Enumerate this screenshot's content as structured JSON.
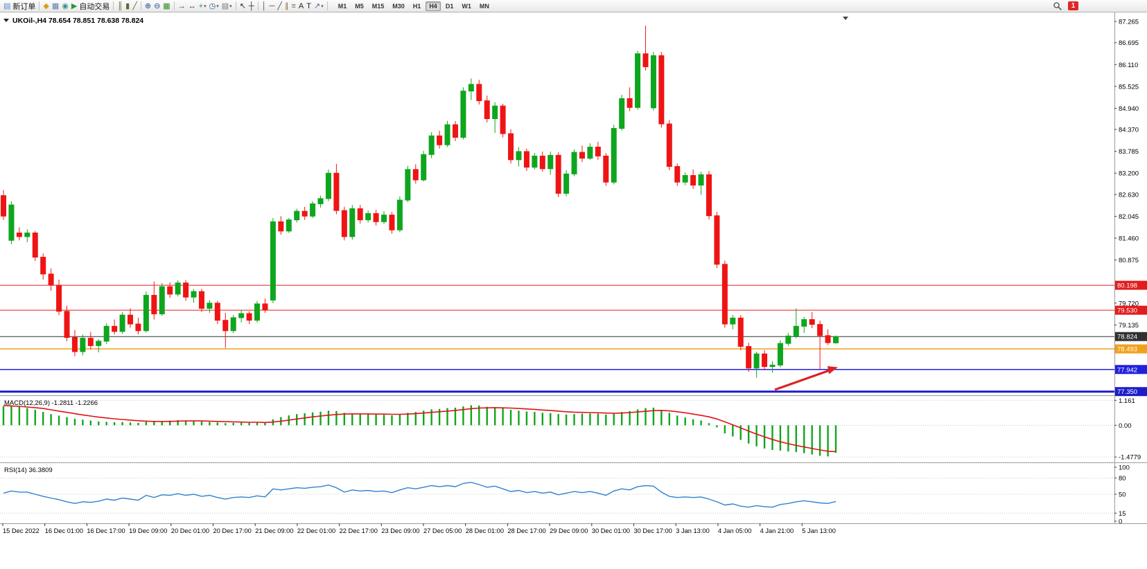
{
  "toolbar": {
    "items": [
      {
        "type": "button",
        "name": "new-order-button",
        "glyph": "▤",
        "color": "#5a8ac6",
        "label": "新订单"
      },
      {
        "type": "sep"
      },
      {
        "type": "icon",
        "name": "profiles-icon",
        "glyph": "◆",
        "color": "#d4a017"
      },
      {
        "type": "icon",
        "name": "new-chart-icon",
        "glyph": "▦",
        "color": "#5b7fae"
      },
      {
        "type": "icon",
        "name": "data-window-icon",
        "glyph": "◉",
        "color": "#3f8f8f"
      },
      {
        "type": "button",
        "name": "autotrading-button",
        "glyph": "▶",
        "color": "#1f9d3a",
        "label": "自动交易"
      },
      {
        "type": "sep"
      },
      {
        "type": "icon",
        "name": "bar-chart-icon",
        "glyph": "║",
        "color": "#556b2f"
      },
      {
        "type": "icon",
        "name": "candlestick-chart-icon",
        "glyph": "▮",
        "color": "#556b2f"
      },
      {
        "type": "icon",
        "name": "line-chart-icon",
        "glyph": "╱",
        "color": "#556b2f"
      },
      {
        "type": "sep"
      },
      {
        "type": "icon",
        "name": "zoom-in-icon",
        "glyph": "⊕",
        "color": "#23538a"
      },
      {
        "type": "icon",
        "name": "zoom-out-icon",
        "glyph": "⊖",
        "color": "#23538a"
      },
      {
        "type": "icon",
        "name": "tile-windows-icon",
        "glyph": "▦",
        "color": "#2e8b2e"
      },
      {
        "type": "sep"
      },
      {
        "type": "icon",
        "name": "auto-scroll-icon",
        "glyph": "→",
        "color": "#444444"
      },
      {
        "type": "icon",
        "name": "chart-shift-icon",
        "glyph": "↔",
        "color": "#444444"
      },
      {
        "type": "icon-drop",
        "name": "indicators-menu",
        "glyph": "+",
        "color": "#1f9d3a"
      },
      {
        "type": "icon-drop",
        "name": "periods-menu",
        "glyph": "◷",
        "color": "#23538a"
      },
      {
        "type": "icon-drop",
        "name": "templates-menu",
        "glyph": "▤",
        "color": "#777777"
      },
      {
        "type": "sep"
      },
      {
        "type": "icon",
        "name": "cursor-icon",
        "glyph": "↖",
        "color": "#222222"
      },
      {
        "type": "icon",
        "name": "crosshair-icon",
        "glyph": "┼",
        "color": "#222222"
      },
      {
        "type": "sep"
      },
      {
        "type": "icon",
        "name": "vertical-line-icon",
        "glyph": "│",
        "color": "#444444"
      },
      {
        "type": "icon",
        "name": "horizontal-line-icon",
        "glyph": "─",
        "color": "#444444"
      },
      {
        "type": "icon",
        "name": "trendline-icon",
        "glyph": "╱",
        "color": "#444444"
      },
      {
        "type": "icon",
        "name": "channel-icon",
        "glyph": "∥",
        "color": "#8a6d3b"
      },
      {
        "type": "icon",
        "name": "fibonacci-icon",
        "glyph": "≡",
        "color": "#8a6d3b"
      },
      {
        "type": "icon",
        "name": "text-icon",
        "glyph": "A",
        "color": "#222222"
      },
      {
        "type": "icon",
        "name": "text-label-icon",
        "glyph": "T",
        "color": "#222222"
      },
      {
        "type": "icon-drop",
        "name": "arrows-menu",
        "glyph": "↗",
        "color": "#7a4ca0"
      },
      {
        "type": "sep"
      }
    ],
    "timeframes": [
      {
        "label": "M1",
        "active": false
      },
      {
        "label": "M5",
        "active": false
      },
      {
        "label": "M15",
        "active": false
      },
      {
        "label": "M30",
        "active": false
      },
      {
        "label": "H1",
        "active": false
      },
      {
        "label": "H4",
        "active": true
      },
      {
        "label": "D1",
        "active": false
      },
      {
        "label": "W1",
        "active": false
      },
      {
        "label": "MN",
        "active": false
      }
    ],
    "notification_count": "1"
  },
  "chart_data": {
    "type": "candlestick",
    "symbol_period": "UKOil-,H4",
    "ohlc_text": "78.654 78.851 78.638 78.824",
    "colors": {
      "up": "#0ea61e",
      "down": "#ef1414",
      "macd_hist": "#0ea61e",
      "macd_signal": "#e01212",
      "rsi_line": "#2f80d0",
      "arrow": "#dd2222"
    },
    "price_axis": {
      "values": [
        87.265,
        86.695,
        86.11,
        85.525,
        84.94,
        84.37,
        83.785,
        83.2,
        82.63,
        82.045,
        81.46,
        80.875,
        79.72,
        79.135
      ]
    },
    "h_lines": [
      {
        "price": 80.198,
        "color": "#e21d1d",
        "label": "80.198",
        "width": 1
      },
      {
        "price": 79.53,
        "color": "#e21d1d",
        "label": "79.530",
        "width": 1
      },
      {
        "price": 78.824,
        "color": "#303030",
        "label": "78.824",
        "width": 1
      },
      {
        "price": 78.493,
        "color": "#f0a11c",
        "label": "78.493",
        "width": 1.5
      },
      {
        "price": 77.942,
        "color": "#2020dd",
        "label": "77.942",
        "width": 1.5
      },
      {
        "price": 77.35,
        "color": "#1c1cc8",
        "label": "77.350",
        "width": 3
      }
    ],
    "time_labels": [
      "15 Dec 2022",
      "16 Dec 01:00",
      "16 Dec 17:00",
      "19 Dec 09:00",
      "20 Dec 01:00",
      "20 Dec 17:00",
      "21 Dec 09:00",
      "22 Dec 01:00",
      "22 Dec 17:00",
      "23 Dec 09:00",
      "27 Dec 05:00",
      "28 Dec 01:00",
      "28 Dec 17:00",
      "29 Dec 09:00",
      "30 Dec 01:00",
      "30 Dec 17:00",
      "3 Jan 13:00",
      "4 Jan 05:00",
      "4 Jan 21:00",
      "5 Jan 13:00"
    ],
    "candles": [
      [
        82.6,
        82.75,
        81.95,
        82.05
      ],
      [
        81.4,
        82.45,
        81.3,
        82.35
      ],
      [
        81.6,
        81.75,
        81.4,
        81.5
      ],
      [
        81.5,
        81.7,
        81.35,
        81.6
      ],
      [
        81.6,
        81.65,
        80.85,
        80.95
      ],
      [
        80.95,
        81.05,
        80.35,
        80.5
      ],
      [
        80.5,
        80.65,
        80.05,
        80.2
      ],
      [
        80.2,
        80.35,
        79.4,
        79.5
      ],
      [
        79.5,
        79.65,
        78.7,
        78.8
      ],
      [
        78.8,
        79.0,
        78.3,
        78.42
      ],
      [
        78.42,
        78.88,
        78.32,
        78.78
      ],
      [
        78.78,
        78.95,
        78.48,
        78.58
      ],
      [
        78.58,
        78.76,
        78.4,
        78.7
      ],
      [
        78.7,
        79.18,
        78.63,
        79.1
      ],
      [
        79.1,
        79.28,
        78.88,
        78.96
      ],
      [
        78.96,
        79.48,
        78.9,
        79.4
      ],
      [
        79.4,
        79.58,
        79.06,
        79.16
      ],
      [
        79.16,
        79.33,
        78.88,
        78.98
      ],
      [
        78.98,
        80.03,
        78.93,
        79.93
      ],
      [
        79.93,
        80.3,
        79.28,
        79.43
      ],
      [
        79.43,
        80.26,
        79.38,
        80.16
      ],
      [
        80.16,
        80.28,
        79.86,
        79.96
      ],
      [
        79.96,
        80.33,
        79.9,
        80.26
      ],
      [
        80.26,
        80.34,
        79.78,
        79.88
      ],
      [
        79.88,
        80.1,
        79.73,
        80.03
      ],
      [
        80.03,
        80.1,
        79.48,
        79.58
      ],
      [
        79.58,
        79.8,
        79.46,
        79.72
      ],
      [
        79.72,
        79.78,
        79.16,
        79.26
      ],
      [
        79.26,
        79.46,
        78.52,
        78.98
      ],
      [
        78.98,
        79.4,
        78.92,
        79.33
      ],
      [
        79.33,
        79.53,
        79.2,
        79.44
      ],
      [
        79.44,
        79.5,
        79.16,
        79.26
      ],
      [
        79.26,
        79.78,
        79.2,
        79.7
      ],
      [
        79.7,
        79.84,
        79.46,
        79.54
      ],
      [
        79.8,
        82.0,
        79.72,
        81.9
      ],
      [
        81.9,
        82.05,
        81.55,
        81.65
      ],
      [
        81.65,
        82.0,
        81.6,
        81.95
      ],
      [
        81.95,
        82.25,
        81.88,
        82.18
      ],
      [
        82.18,
        82.3,
        81.95,
        82.05
      ],
      [
        82.05,
        82.45,
        82.0,
        82.38
      ],
      [
        82.38,
        82.6,
        82.28,
        82.52
      ],
      [
        82.52,
        83.3,
        82.45,
        83.2
      ],
      [
        83.2,
        83.45,
        82.1,
        82.2
      ],
      [
        82.2,
        82.3,
        81.4,
        81.5
      ],
      [
        81.5,
        82.35,
        81.42,
        82.25
      ],
      [
        82.25,
        82.35,
        81.85,
        81.95
      ],
      [
        81.95,
        82.2,
        81.88,
        82.12
      ],
      [
        82.12,
        82.22,
        81.8,
        81.9
      ],
      [
        81.9,
        82.18,
        81.84,
        82.08
      ],
      [
        82.08,
        82.16,
        81.58,
        81.68
      ],
      [
        81.68,
        82.58,
        81.62,
        82.48
      ],
      [
        82.48,
        83.4,
        82.42,
        83.3
      ],
      [
        83.3,
        83.44,
        82.92,
        83.02
      ],
      [
        83.02,
        83.8,
        82.98,
        83.7
      ],
      [
        83.7,
        84.3,
        83.6,
        84.2
      ],
      [
        84.2,
        84.34,
        83.86,
        83.96
      ],
      [
        83.96,
        84.6,
        83.9,
        84.5
      ],
      [
        84.5,
        84.6,
        84.06,
        84.16
      ],
      [
        84.16,
        85.5,
        84.1,
        85.4
      ],
      [
        85.4,
        85.74,
        85.16,
        85.58
      ],
      [
        85.58,
        85.7,
        85.04,
        85.14
      ],
      [
        85.14,
        85.28,
        84.56,
        84.66
      ],
      [
        84.66,
        85.1,
        84.28,
        85.0
      ],
      [
        85.0,
        85.06,
        84.16,
        84.26
      ],
      [
        84.26,
        84.38,
        83.46,
        83.56
      ],
      [
        83.56,
        83.9,
        83.38,
        83.78
      ],
      [
        83.78,
        83.86,
        83.26,
        83.36
      ],
      [
        83.36,
        83.74,
        83.3,
        83.66
      ],
      [
        83.66,
        83.78,
        83.24,
        83.32
      ],
      [
        83.32,
        83.78,
        83.16,
        83.68
      ],
      [
        83.68,
        83.76,
        82.56,
        82.66
      ],
      [
        82.66,
        83.28,
        82.58,
        83.18
      ],
      [
        83.18,
        83.84,
        83.12,
        83.76
      ],
      [
        83.76,
        83.94,
        83.5,
        83.6
      ],
      [
        83.6,
        84.0,
        83.56,
        83.9
      ],
      [
        83.9,
        84.04,
        83.56,
        83.66
      ],
      [
        83.66,
        83.74,
        82.86,
        82.96
      ],
      [
        82.96,
        84.5,
        82.9,
        84.4
      ],
      [
        84.4,
        85.3,
        84.34,
        85.2
      ],
      [
        85.2,
        85.5,
        84.86,
        84.96
      ],
      [
        84.96,
        86.48,
        84.9,
        86.4
      ],
      [
        86.4,
        87.15,
        85.95,
        86.05
      ],
      [
        84.95,
        86.45,
        84.88,
        86.35
      ],
      [
        86.35,
        86.45,
        84.42,
        84.52
      ],
      [
        84.52,
        84.62,
        83.28,
        83.38
      ],
      [
        83.38,
        83.46,
        82.86,
        82.96
      ],
      [
        82.96,
        83.22,
        82.88,
        83.14
      ],
      [
        83.14,
        83.3,
        82.78,
        82.88
      ],
      [
        82.88,
        83.24,
        82.62,
        83.16
      ],
      [
        83.16,
        83.26,
        81.96,
        82.06
      ],
      [
        82.06,
        82.16,
        80.66,
        80.76
      ],
      [
        80.76,
        80.86,
        79.06,
        79.16
      ],
      [
        79.16,
        79.4,
        79.02,
        79.32
      ],
      [
        79.32,
        79.4,
        78.46,
        78.56
      ],
      [
        78.56,
        78.66,
        77.88,
        77.98
      ],
      [
        77.98,
        78.42,
        77.72,
        78.36
      ],
      [
        78.36,
        78.46,
        77.92,
        78.02
      ],
      [
        78.02,
        78.16,
        77.86,
        78.06
      ],
      [
        78.06,
        78.72,
        78.0,
        78.64
      ],
      [
        78.64,
        78.92,
        78.58,
        78.84
      ],
      [
        78.84,
        79.58,
        78.78,
        79.1
      ],
      [
        79.1,
        79.35,
        78.92,
        79.28
      ],
      [
        79.28,
        79.48,
        79.05,
        79.15
      ],
      [
        79.15,
        79.25,
        77.95,
        78.85
      ],
      [
        78.85,
        79.02,
        78.6,
        78.66
      ],
      [
        78.654,
        78.851,
        78.638,
        78.824
      ]
    ],
    "macd": {
      "label": "MACD(12,26,9)",
      "values_text": "-1.2811 -1.2266",
      "axis_labels": [
        "1.161",
        "0.00",
        "-1.4779"
      ],
      "axis_values": [
        1.161,
        0,
        -1.4779
      ],
      "range": [
        -1.6,
        1.3
      ],
      "histogram": [
        0.88,
        0.92,
        0.86,
        0.8,
        0.72,
        0.62,
        0.52,
        0.45,
        0.38,
        0.3,
        0.26,
        0.22,
        0.18,
        0.16,
        0.14,
        0.15,
        0.13,
        0.11,
        0.16,
        0.18,
        0.2,
        0.22,
        0.24,
        0.22,
        0.2,
        0.17,
        0.15,
        0.13,
        0.1,
        0.11,
        0.12,
        0.11,
        0.13,
        0.12,
        0.28,
        0.38,
        0.46,
        0.52,
        0.56,
        0.6,
        0.63,
        0.68,
        0.66,
        0.58,
        0.55,
        0.53,
        0.52,
        0.5,
        0.49,
        0.46,
        0.5,
        0.58,
        0.62,
        0.68,
        0.74,
        0.76,
        0.8,
        0.82,
        0.88,
        0.93,
        0.92,
        0.86,
        0.84,
        0.8,
        0.72,
        0.68,
        0.64,
        0.62,
        0.58,
        0.57,
        0.52,
        0.5,
        0.52,
        0.54,
        0.55,
        0.54,
        0.5,
        0.56,
        0.62,
        0.66,
        0.74,
        0.8,
        0.82,
        0.72,
        0.58,
        0.45,
        0.36,
        0.28,
        0.22,
        0.1,
        -0.1,
        -0.38,
        -0.52,
        -0.68,
        -0.85,
        -0.98,
        -1.08,
        -1.15,
        -1.18,
        -1.22,
        -1.25,
        -1.3,
        -1.36,
        -1.42,
        -1.45,
        -1.2811
      ],
      "signal": [
        0.92,
        0.9,
        0.88,
        0.85,
        0.82,
        0.78,
        0.72,
        0.66,
        0.6,
        0.54,
        0.48,
        0.43,
        0.38,
        0.34,
        0.3,
        0.27,
        0.24,
        0.21,
        0.19,
        0.18,
        0.18,
        0.18,
        0.19,
        0.2,
        0.2,
        0.2,
        0.19,
        0.18,
        0.17,
        0.16,
        0.15,
        0.14,
        0.14,
        0.13,
        0.15,
        0.19,
        0.24,
        0.29,
        0.34,
        0.39,
        0.43,
        0.47,
        0.5,
        0.52,
        0.53,
        0.53,
        0.53,
        0.52,
        0.52,
        0.51,
        0.51,
        0.52,
        0.54,
        0.57,
        0.6,
        0.63,
        0.66,
        0.69,
        0.73,
        0.77,
        0.8,
        0.81,
        0.82,
        0.81,
        0.8,
        0.78,
        0.76,
        0.74,
        0.71,
        0.69,
        0.66,
        0.63,
        0.61,
        0.6,
        0.59,
        0.58,
        0.57,
        0.56,
        0.57,
        0.59,
        0.62,
        0.65,
        0.68,
        0.69,
        0.67,
        0.63,
        0.58,
        0.52,
        0.46,
        0.39,
        0.29,
        0.16,
        0.02,
        -0.12,
        -0.27,
        -0.41,
        -0.54,
        -0.66,
        -0.77,
        -0.86,
        -0.94,
        -1.01,
        -1.08,
        -1.15,
        -1.21,
        -1.2266
      ]
    },
    "rsi": {
      "label": "RSI(14)",
      "value_text": "36.3809",
      "axis_labels": [
        "100",
        "80",
        "50",
        "15",
        "0"
      ],
      "axis_values": [
        100,
        80,
        50,
        15,
        0
      ],
      "levels": [
        80,
        50,
        15
      ],
      "range": [
        0,
        100
      ],
      "values": [
        52,
        56,
        54,
        54,
        50,
        46,
        43,
        40,
        36,
        33,
        36,
        35,
        37,
        41,
        39,
        43,
        41,
        39,
        48,
        44,
        49,
        48,
        51,
        48,
        50,
        46,
        48,
        44,
        41,
        44,
        45,
        44,
        47,
        45,
        60,
        58,
        60,
        62,
        61,
        63,
        64,
        67,
        62,
        54,
        58,
        56,
        57,
        55,
        56,
        53,
        58,
        62,
        60,
        63,
        66,
        64,
        66,
        64,
        70,
        72,
        68,
        63,
        65,
        60,
        55,
        57,
        53,
        55,
        52,
        54,
        49,
        52,
        55,
        53,
        55,
        52,
        48,
        56,
        60,
        58,
        64,
        66,
        65,
        54,
        46,
        44,
        45,
        44,
        45,
        41,
        36,
        30,
        32,
        28,
        26,
        29,
        27,
        26,
        31,
        33,
        36,
        38,
        36,
        34,
        33,
        36.38
      ]
    }
  }
}
